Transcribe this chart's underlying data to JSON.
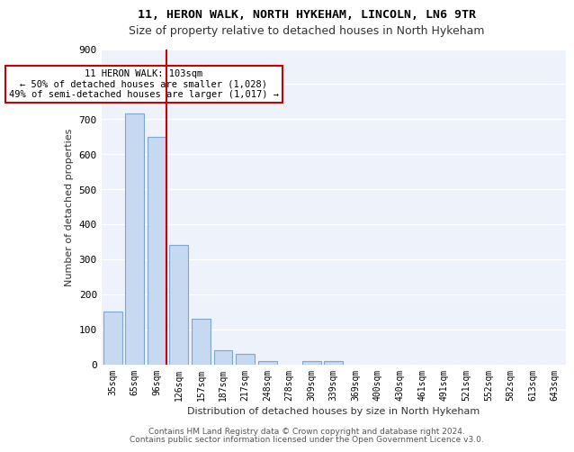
{
  "title1": "11, HERON WALK, NORTH HYKEHAM, LINCOLN, LN6 9TR",
  "title2": "Size of property relative to detached houses in North Hykeham",
  "xlabel": "Distribution of detached houses by size in North Hykeham",
  "ylabel": "Number of detached properties",
  "categories": [
    "35sqm",
    "65sqm",
    "96sqm",
    "126sqm",
    "157sqm",
    "187sqm",
    "217sqm",
    "248sqm",
    "278sqm",
    "309sqm",
    "339sqm",
    "369sqm",
    "400sqm",
    "430sqm",
    "461sqm",
    "491sqm",
    "521sqm",
    "552sqm",
    "582sqm",
    "613sqm",
    "643sqm"
  ],
  "values": [
    150,
    715,
    650,
    340,
    130,
    40,
    30,
    10,
    0,
    10,
    10,
    0,
    0,
    0,
    0,
    0,
    0,
    0,
    0,
    0,
    0
  ],
  "bar_color": "#c6d9f0",
  "bar_edge_color": "#7da6d4",
  "redline_index": 2,
  "redline_x": 2,
  "annotation_title": "11 HERON WALK: 103sqm",
  "annotation_line1": "← 50% of detached houses are smaller (1,028)",
  "annotation_line2": "49% of semi-detached houses are larger (1,017) →",
  "annotation_box_color": "#ffffff",
  "annotation_box_edge": "#cc0000",
  "ylim": [
    0,
    900
  ],
  "yticks": [
    0,
    100,
    200,
    300,
    400,
    500,
    600,
    700,
    800,
    900
  ],
  "footer1": "Contains HM Land Registry data © Crown copyright and database right 2024.",
  "footer2": "Contains public sector information licensed under the Open Government Licence v3.0.",
  "bg_color": "#eef3fb",
  "grid_color": "#ffffff",
  "red_line_color": "#cc0000"
}
